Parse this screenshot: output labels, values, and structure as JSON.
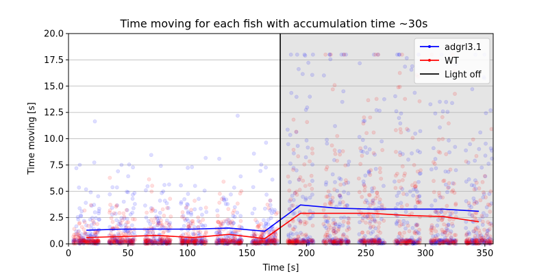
{
  "chart_data": {
    "type": "line",
    "title": "Time moving for each fish with accumulation time ~30s",
    "xlabel": "Time [s]",
    "ylabel": "Time moving [s]",
    "xlim": [
      0,
      357
    ],
    "ylim": [
      0,
      20
    ],
    "x_ticks": [
      0,
      50,
      100,
      150,
      200,
      250,
      300,
      350
    ],
    "y_ticks": [
      0.0,
      2.5,
      5.0,
      7.5,
      10.0,
      12.5,
      15.0,
      17.5,
      20.0
    ],
    "y_tick_labels": [
      "0.0",
      "2.5",
      "5.0",
      "7.5",
      "10.0",
      "12.5",
      "15.0",
      "17.5",
      "20.0"
    ],
    "grid": "horizontal",
    "light_off_time": 178,
    "shaded_region": [
      178,
      357
    ],
    "shade_color": "#e5e5e5",
    "legend_position": "top-right",
    "series": [
      {
        "name": "adgrl3.1",
        "color": "#0000ff",
        "x": [
          15,
          45,
          75,
          105,
          135,
          165,
          195,
          225,
          255,
          285,
          315,
          345
        ],
        "y": [
          1.3,
          1.4,
          1.4,
          1.4,
          1.5,
          1.2,
          3.7,
          3.4,
          3.3,
          3.3,
          3.3,
          3.1
        ]
      },
      {
        "name": "WT",
        "color": "#ff0000",
        "x": [
          15,
          45,
          75,
          105,
          135,
          165,
          195,
          225,
          255,
          285,
          315,
          345
        ],
        "y": [
          0.6,
          0.7,
          0.8,
          0.6,
          0.9,
          0.5,
          2.9,
          2.9,
          2.9,
          2.7,
          2.6,
          2.1
        ]
      },
      {
        "name": "Light off",
        "color": "#000000",
        "marker": "vertical-line"
      }
    ],
    "scatter_points_per_bin": 120
  }
}
